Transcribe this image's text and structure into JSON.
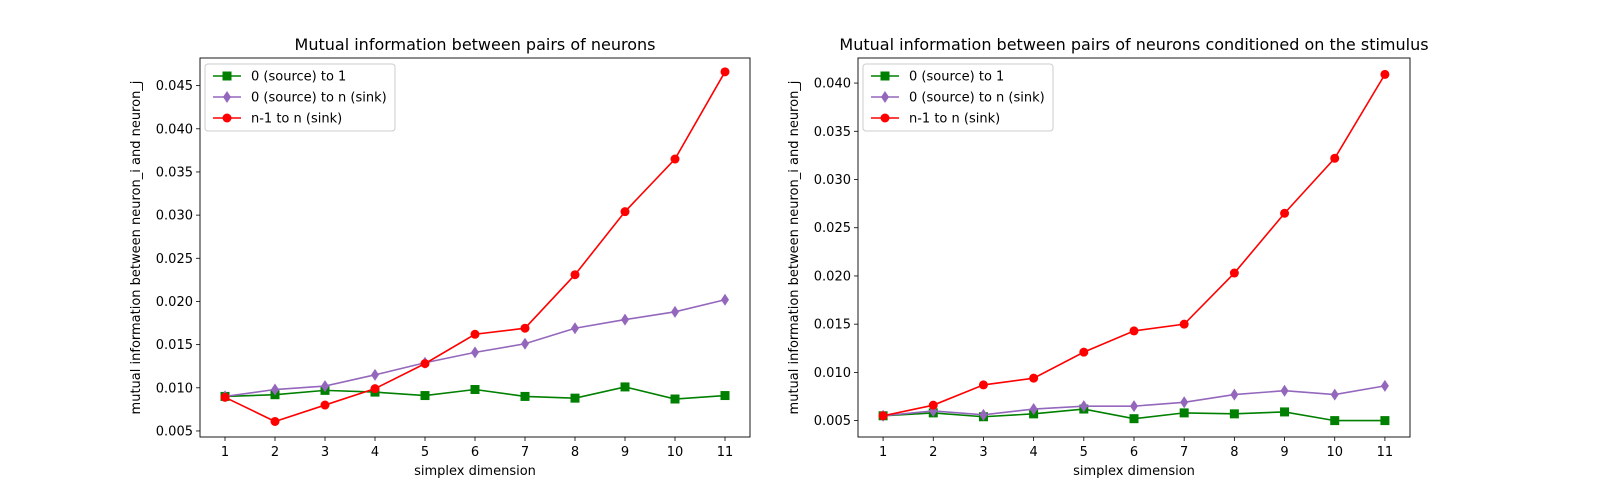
{
  "chart_data": [
    {
      "type": "line",
      "title": "Mutual information between pairs of neurons",
      "xlabel": "simplex dimension",
      "ylabel": "mutual information between neuron_i and neuron_j",
      "x": [
        1,
        2,
        3,
        4,
        5,
        6,
        7,
        8,
        9,
        10,
        11
      ],
      "xlim": [
        0.5,
        11.5
      ],
      "ylim": [
        0.0043,
        0.0482
      ],
      "yticks": [
        "0.005",
        "0.010",
        "0.015",
        "0.020",
        "0.025",
        "0.030",
        "0.035",
        "0.040",
        "0.045"
      ],
      "legend_position": "upper-left",
      "grid": false,
      "series": [
        {
          "name": "0 (source) to 1",
          "color": "#008000",
          "marker": "square",
          "values": [
            0.009,
            0.0092,
            0.0097,
            0.0095,
            0.0091,
            0.0098,
            0.009,
            0.0088,
            0.0101,
            0.0087,
            0.0091
          ]
        },
        {
          "name": "0 (source) to n (sink)",
          "color": "#9467bd",
          "marker": "diamond",
          "values": [
            0.009,
            0.0098,
            0.0102,
            0.0115,
            0.0129,
            0.0141,
            0.0151,
            0.0169,
            0.0179,
            0.0188,
            0.0202
          ]
        },
        {
          "name": "n-1 to n (sink)",
          "color": "#ff0000",
          "marker": "circle",
          "values": [
            0.0089,
            0.0061,
            0.008,
            0.0099,
            0.0128,
            0.0162,
            0.0169,
            0.0231,
            0.0304,
            0.0365,
            0.0466
          ]
        }
      ]
    },
    {
      "type": "line",
      "title": "Mutual information between pairs of neurons conditioned on the stimulus",
      "xlabel": "simplex dimension",
      "ylabel": "mutual information between neuron_i and neuron_j",
      "x": [
        1,
        2,
        3,
        4,
        5,
        6,
        7,
        8,
        9,
        10,
        11
      ],
      "xlim": [
        0.5,
        11.5
      ],
      "ylim": [
        0.0033,
        0.0426
      ],
      "yticks": [
        "0.005",
        "0.010",
        "0.015",
        "0.020",
        "0.025",
        "0.030",
        "0.035",
        "0.040"
      ],
      "legend_position": "upper-left",
      "grid": false,
      "series": [
        {
          "name": "0 (source) to 1",
          "color": "#008000",
          "marker": "square",
          "values": [
            0.0055,
            0.0058,
            0.0054,
            0.0057,
            0.0062,
            0.0052,
            0.0058,
            0.0057,
            0.0059,
            0.005,
            0.005
          ]
        },
        {
          "name": "0 (source) to n (sink)",
          "color": "#9467bd",
          "marker": "diamond",
          "values": [
            0.0055,
            0.006,
            0.0056,
            0.0062,
            0.0065,
            0.0065,
            0.0069,
            0.0077,
            0.0081,
            0.0077,
            0.0086
          ]
        },
        {
          "name": "n-1 to n (sink)",
          "color": "#ff0000",
          "marker": "circle",
          "values": [
            0.0055,
            0.0066,
            0.0087,
            0.0094,
            0.0121,
            0.0143,
            0.015,
            0.0203,
            0.0265,
            0.0322,
            0.0409
          ]
        }
      ]
    }
  ]
}
